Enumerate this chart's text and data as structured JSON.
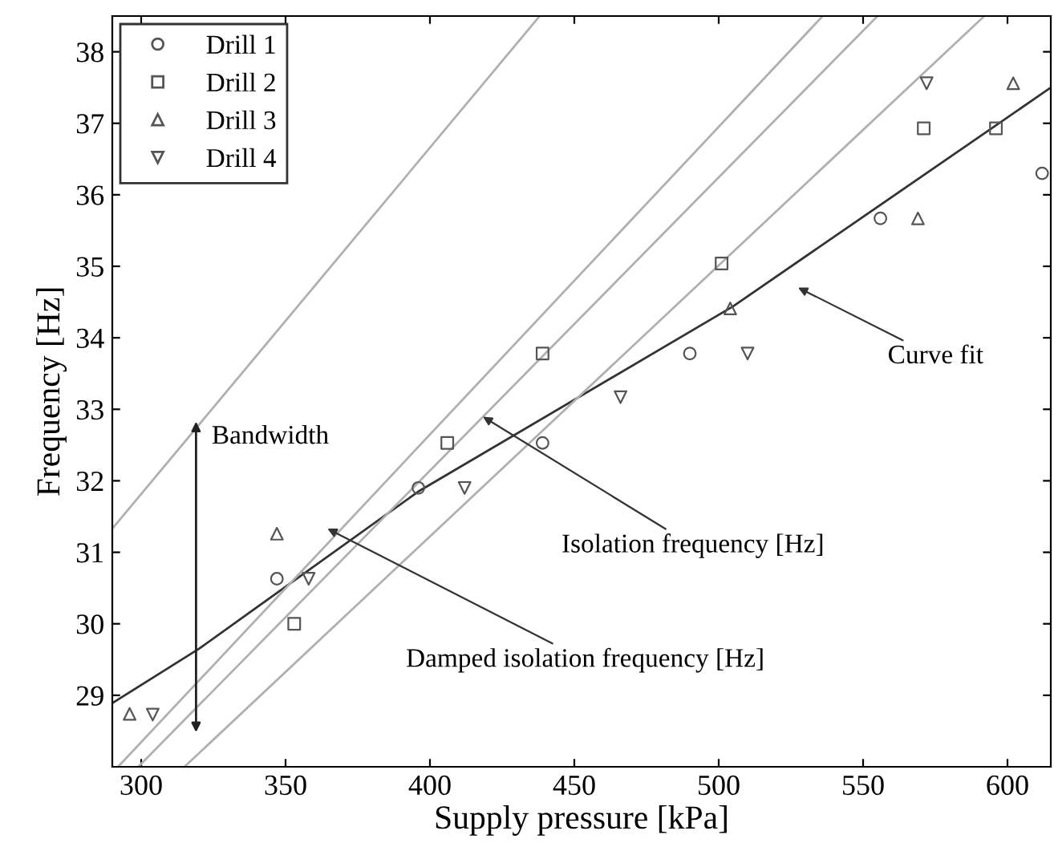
{
  "chart_data": {
    "type": "scatter",
    "xlabel": "Supply pressure [kPa]",
    "ylabel": "Frequency [Hz]",
    "xlim": [
      290,
      615
    ],
    "ylim": [
      28,
      38.5
    ],
    "xticks": [
      300,
      350,
      400,
      450,
      500,
      550,
      600
    ],
    "yticks": [
      29,
      30,
      31,
      32,
      33,
      34,
      35,
      36,
      37,
      38
    ],
    "grid": false,
    "legend": "top left",
    "series": [
      {
        "name": "Drill 1",
        "marker": "circle",
        "color": "#555555",
        "x": [
          347,
          396,
          439,
          490,
          556,
          612
        ],
        "values": [
          30.63,
          31.9,
          32.53,
          33.78,
          35.67,
          36.3
        ]
      },
      {
        "name": "Drill 2",
        "marker": "square",
        "color": "#555555",
        "x": [
          353,
          406,
          439,
          501,
          571,
          596
        ],
        "values": [
          30.0,
          32.53,
          33.78,
          35.04,
          36.93,
          36.93
        ]
      },
      {
        "name": "Drill 3",
        "marker": "triangle",
        "color": "#555555",
        "x": [
          296,
          347,
          504,
          569,
          602
        ],
        "values": [
          28.74,
          31.26,
          34.41,
          35.67,
          37.56
        ]
      },
      {
        "name": "Drill 4",
        "marker": "triangle_down",
        "color": "#555555",
        "x": [
          304,
          358,
          412,
          466,
          510,
          572
        ],
        "values": [
          28.73,
          30.63,
          31.9,
          33.17,
          33.78,
          37.56
        ]
      },
      {
        "type": "line",
        "line_style": "solid",
        "color": "#333333",
        "x": [
          290,
          320,
          396,
          505,
          615
        ],
        "values": [
          28.89,
          29.65,
          31.85,
          34.44,
          37.5
        ]
      },
      {
        "type": "line",
        "line_style": "solid",
        "color": "#b0b0b0",
        "x": [
          290,
          438
        ],
        "values": [
          31.33,
          38.5
        ]
      },
      {
        "type": "line",
        "line_style": "solid",
        "color": "#b0b0b0",
        "x": [
          292,
          536
        ],
        "values": [
          28,
          38.5
        ]
      },
      {
        "type": "line",
        "line_style": "solid",
        "color": "#b0b0b0",
        "x": [
          299,
          555
        ],
        "values": [
          28,
          38.5
        ]
      },
      {
        "type": "line",
        "line_style": "solid",
        "color": "#b0b0b0",
        "x": [
          315,
          592
        ],
        "values": [
          28,
          38.5
        ]
      }
    ],
    "annotations": [
      {
        "text": "Bandwidth",
        "x": 319,
        "y": 32.89
      },
      "Curve fit",
      {
        "text": "Isolation frequency [Hz]",
        "x": 417,
        "y": 32.93
      },
      "Damped isolation frequency [Hz]"
    ]
  }
}
